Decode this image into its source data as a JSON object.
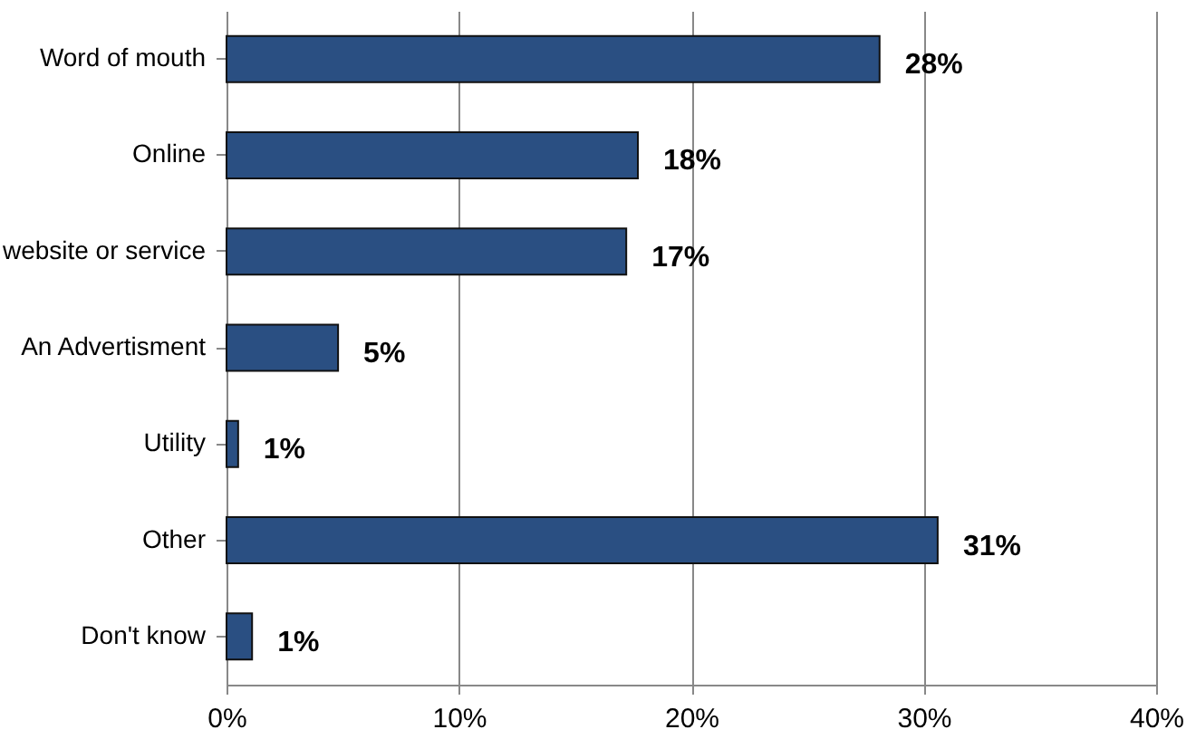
{
  "chart_data": {
    "type": "bar",
    "orientation": "horizontal",
    "categories": [
      "Word of mouth",
      "Online",
      "website or service",
      "An Advertisment",
      "Utility",
      "Other",
      "Don't know"
    ],
    "values": [
      28.1,
      17.7,
      17.2,
      4.8,
      0.5,
      30.6,
      1.1
    ],
    "value_labels": [
      "28%",
      "18%",
      "17%",
      "5%",
      "1%",
      "31%",
      "1%"
    ],
    "color": "#2a4f82",
    "xlim": [
      0,
      40
    ],
    "xticks": [
      {
        "value": 0,
        "label": "0%"
      },
      {
        "value": 10,
        "label": "10%"
      },
      {
        "value": 20,
        "label": "20%"
      },
      {
        "value": 30,
        "label": "30%"
      },
      {
        "value": 40,
        "label": "40%"
      }
    ],
    "grid": "x"
  }
}
